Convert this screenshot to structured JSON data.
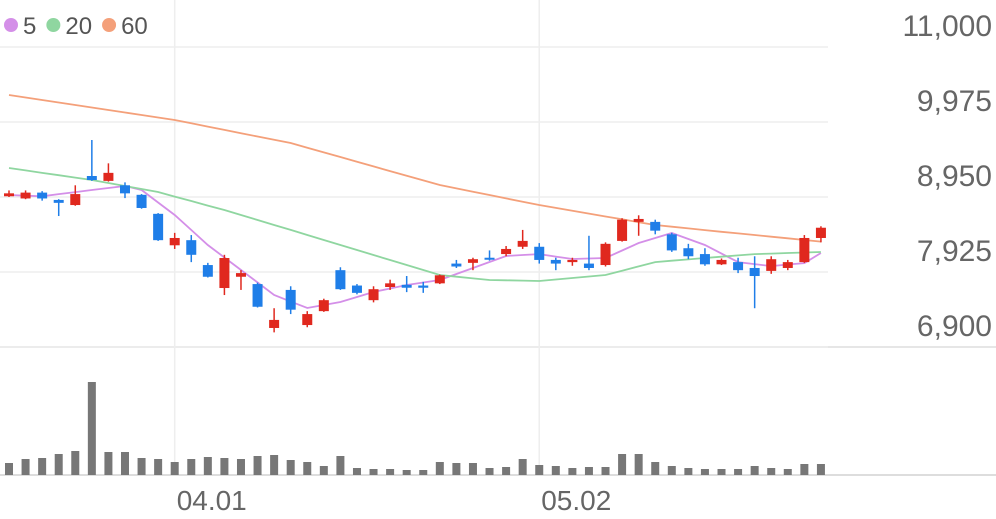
{
  "chart_data": {
    "type": "candlestick",
    "categories": [
      null,
      null,
      null,
      null,
      null,
      null,
      null,
      null,
      null,
      null,
      "04.01",
      null,
      null,
      null,
      null,
      null,
      null,
      null,
      null,
      null,
      null,
      null,
      null,
      null,
      null,
      null,
      null,
      null,
      null,
      null,
      null,
      null,
      "05.02",
      null,
      null,
      null,
      null,
      null,
      null,
      null,
      null,
      null,
      null,
      null,
      null,
      null,
      null,
      null,
      null,
      null
    ],
    "ylim": [
      6900,
      11000
    ],
    "yticks": [
      {
        "value": 11000,
        "label": "11,000"
      },
      {
        "value": 9975,
        "label": "9,975"
      },
      {
        "value": 8950,
        "label": "8,950"
      },
      {
        "value": 7925,
        "label": "7,925"
      },
      {
        "value": 6900,
        "label": "6,900"
      }
    ],
    "grid": true,
    "legend": "top-left",
    "up_color": "#e0281e",
    "down_color": "#1f7ee8",
    "open": [
      8960,
      8930,
      9010,
      8910,
      8840,
      9237,
      9170,
      9110,
      8980,
      8720,
      8290,
      8360,
      8020,
      7706,
      7860,
      7760,
      7160,
      7680,
      7200,
      7390,
      7950,
      7740,
      7540,
      7720,
      7750,
      7740,
      7770,
      8040,
      8050,
      8120,
      8170,
      8270,
      8270,
      8090,
      8060,
      8040,
      8020,
      8350,
      8610,
      8610,
      8440,
      8250,
      8170,
      8030,
      8060,
      7980,
      7940,
      7980,
      8060,
      8390
    ],
    "high": [
      9040,
      9040,
      9030,
      8920,
      9110,
      9729,
      9410,
      9150,
      8990,
      8730,
      8460,
      8430,
      8050,
      8160,
      7950,
      7780,
      7430,
      7730,
      7390,
      7560,
      7990,
      7760,
      7730,
      7820,
      7870,
      7790,
      7890,
      8090,
      8120,
      8220,
      8280,
      8500,
      8320,
      8120,
      8120,
      8420,
      8330,
      8660,
      8700,
      8640,
      8460,
      8310,
      8250,
      8110,
      8120,
      8140,
      8140,
      8090,
      8430,
      8550
    ],
    "low": [
      8950,
      8920,
      8900,
      8690,
      8830,
      9170,
      9160,
      8935,
      8790,
      8350,
      8240,
      8060,
      7850,
      7610,
      7680,
      7440,
      7100,
      7350,
      7170,
      7380,
      7680,
      7620,
      7510,
      7680,
      7650,
      7640,
      7760,
      7980,
      7950,
      8080,
      8140,
      8240,
      8040,
      7950,
      8010,
      7950,
      8000,
      8340,
      8420,
      8440,
      8200,
      8100,
      8010,
      8020,
      7910,
      7430,
      7900,
      7950,
      8050,
      8330
    ],
    "close": [
      9000,
      9010,
      8930,
      8870,
      8990,
      9182,
      9280,
      9000,
      8800,
      8360,
      8390,
      8160,
      7860,
      8116,
      7910,
      7450,
      7270,
      7410,
      7350,
      7540,
      7690,
      7640,
      7690,
      7770,
      7710,
      7710,
      7880,
      8000,
      8100,
      8100,
      8240,
      8350,
      8090,
      8040,
      8090,
      7980,
      8310,
      8640,
      8650,
      8490,
      8220,
      8140,
      8030,
      8090,
      7950,
      7870,
      8100,
      8060,
      8390,
      8530
    ],
    "series": [
      {
        "name": "5",
        "color": "#d48fe8",
        "values": [
          8977,
          8968,
          8960,
          8989,
          9017,
          9046,
          9073,
          9100,
          9046,
          8875,
          8704,
          8499,
          8294,
          8123,
          7952,
          7781,
          7610,
          7521,
          7433,
          7474,
          7515,
          7583,
          7651,
          7699,
          7747,
          7781,
          7815,
          7898,
          7980,
          8062,
          8143,
          8157,
          8170,
          8136,
          8102,
          8109,
          8116,
          8219,
          8321,
          8390,
          8458,
          8376,
          8294,
          8177,
          8060,
          8033,
          8006,
          8027,
          8047,
          8184
        ]
      },
      {
        "name": "20",
        "color": "#8fd6a0",
        "values": [
          9346,
          9313,
          9280,
          9248,
          9215,
          9182,
          9141,
          9100,
          9059,
          9018,
          8956,
          8895,
          8833,
          8772,
          8704,
          8636,
          8568,
          8500,
          8431,
          8362,
          8294,
          8225,
          8157,
          8089,
          8020,
          7952,
          7884,
          7861,
          7838,
          7816,
          7811,
          7807,
          7802,
          7822,
          7843,
          7863,
          7884,
          7943,
          8001,
          8060,
          8079,
          8097,
          8116,
          8134,
          8152,
          8170,
          8177,
          8184,
          8191,
          8198
        ]
      },
      {
        "name": "60",
        "color": "#f4a07a",
        "values": [
          10344,
          10310,
          10276,
          10242,
          10208,
          10173,
          10139,
          10105,
          10071,
          10036,
          10002,
          9957,
          9912,
          9867,
          9822,
          9777,
          9733,
          9688,
          9624,
          9560,
          9496,
          9432,
          9368,
          9304,
          9240,
          9177,
          9114,
          9068,
          9022,
          8977,
          8931,
          8886,
          8840,
          8801,
          8762,
          8723,
          8684,
          8645,
          8606,
          8567,
          8544,
          8521,
          8498,
          8475,
          8453,
          8430,
          8407,
          8385,
          8362,
          8340
        ]
      }
    ],
    "volume": {
      "color": "#777777",
      "ylim": [
        0,
        100
      ],
      "values": [
        12,
        16,
        17,
        21,
        24,
        93,
        23,
        23,
        17,
        16,
        13,
        16,
        18,
        17,
        16,
        19,
        20,
        15,
        13,
        9,
        19,
        7,
        6,
        6,
        5,
        5,
        13,
        12,
        12,
        7,
        8,
        16,
        10,
        9,
        7,
        8,
        8,
        21,
        21,
        13,
        9,
        7,
        6,
        6,
        6,
        9,
        7,
        6,
        11,
        11
      ]
    }
  }
}
